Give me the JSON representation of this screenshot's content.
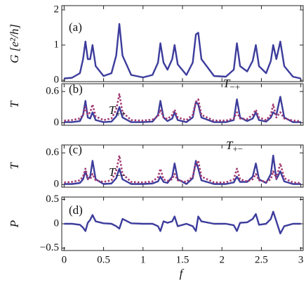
{
  "chart_data": {
    "type": "line",
    "xlabel": "f",
    "xlim": [
      -0.03,
      3.03
    ],
    "xticks": [
      0,
      0.5,
      1,
      1.5,
      2,
      2.5,
      3
    ],
    "x": [
      0,
      0.1,
      0.2,
      0.24,
      0.27,
      0.3,
      0.33,
      0.36,
      0.4,
      0.5,
      0.6,
      0.66,
      0.7,
      0.74,
      0.85,
      1.0,
      1.12,
      1.19,
      1.22,
      1.26,
      1.31,
      1.37,
      1.4,
      1.44,
      1.55,
      1.63,
      1.67,
      1.7,
      1.74,
      1.9,
      2.05,
      2.15,
      2.19,
      2.23,
      2.32,
      2.39,
      2.43,
      2.47,
      2.56,
      2.62,
      2.65,
      2.69,
      2.74,
      2.79,
      2.9,
      3.0
    ],
    "panels": [
      {
        "label": "(a)",
        "ylabel": "G [e²/h]",
        "ylim": [
          -0.04,
          2.12
        ],
        "yticks": [
          0,
          1,
          2
        ],
        "series": [
          {
            "color": "#3c3c9c",
            "dashed": false,
            "values": [
              0.05,
              0.07,
              0.2,
              0.6,
              1.1,
              0.6,
              0.6,
              1.0,
              0.4,
              0.12,
              0.2,
              0.7,
              1.6,
              0.7,
              0.15,
              0.08,
              0.15,
              0.5,
              1.05,
              0.5,
              0.3,
              0.6,
              1.0,
              0.45,
              0.15,
              0.5,
              1.3,
              1.35,
              0.6,
              0.12,
              0.1,
              0.3,
              1.05,
              0.4,
              0.25,
              0.55,
              1.0,
              0.4,
              0.2,
              0.55,
              1.0,
              0.6,
              1.1,
              0.4,
              0.1,
              0.05
            ]
          }
        ],
        "annotations": []
      },
      {
        "label": "(b)",
        "ylabel": "T",
        "ylim": [
          -0.05,
          0.75
        ],
        "yticks": [
          0,
          0.6
        ],
        "series": [
          {
            "color": "#3c3c9c",
            "dashed": false,
            "values": [
              0.01,
              0.01,
              0.03,
              0.15,
              0.42,
              0.1,
              0.08,
              0.2,
              0.05,
              0.01,
              0.02,
              0.12,
              0.3,
              0.1,
              0.01,
              0.01,
              0.02,
              0.15,
              0.42,
              0.1,
              0.03,
              0.08,
              0.2,
              0.05,
              0.01,
              0.1,
              0.4,
              0.35,
              0.1,
              0.01,
              0.01,
              0.05,
              0.45,
              0.1,
              0.03,
              0.08,
              0.2,
              0.05,
              0.02,
              0.1,
              0.2,
              0.15,
              0.5,
              0.1,
              0.01,
              0.01
            ]
          },
          {
            "color": "#a33a72",
            "dashed": true,
            "values": [
              0.04,
              0.05,
              0.08,
              0.15,
              0.3,
              0.15,
              0.2,
              0.35,
              0.12,
              0.05,
              0.08,
              0.25,
              0.55,
              0.2,
              0.05,
              0.04,
              0.06,
              0.12,
              0.25,
              0.1,
              0.07,
              0.15,
              0.25,
              0.1,
              0.05,
              0.15,
              0.4,
              0.45,
              0.15,
              0.04,
              0.04,
              0.08,
              0.2,
              0.08,
              0.07,
              0.15,
              0.25,
              0.1,
              0.05,
              0.15,
              0.35,
              0.1,
              0.2,
              0.08,
              0.04,
              0.03
            ]
          }
        ],
        "annotations": [
          {
            "text": "T",
            "sub": "++"
          },
          {
            "text": "T",
            "sub": "−+"
          }
        ]
      },
      {
        "label": "(c)",
        "ylabel": "T",
        "ylim": [
          -0.05,
          0.75
        ],
        "yticks": [
          0,
          0.6
        ],
        "series": [
          {
            "color": "#3c3c9c",
            "dashed": false,
            "values": [
              0.01,
              0.01,
              0.03,
              0.1,
              0.25,
              0.1,
              0.15,
              0.45,
              0.1,
              0.01,
              0.02,
              0.12,
              0.3,
              0.1,
              0.01,
              0.01,
              0.02,
              0.06,
              0.15,
              0.05,
              0.03,
              0.15,
              0.4,
              0.1,
              0.01,
              0.12,
              0.45,
              0.3,
              0.08,
              0.01,
              0.01,
              0.04,
              0.15,
              0.05,
              0.05,
              0.15,
              0.4,
              0.1,
              0.03,
              0.2,
              0.55,
              0.1,
              0.25,
              0.06,
              0.01,
              0.01
            ]
          },
          {
            "color": "#a33a72",
            "dashed": true,
            "values": [
              0.04,
              0.05,
              0.08,
              0.15,
              0.3,
              0.12,
              0.1,
              0.2,
              0.08,
              0.05,
              0.08,
              0.25,
              0.55,
              0.2,
              0.05,
              0.04,
              0.06,
              0.14,
              0.3,
              0.1,
              0.07,
              0.1,
              0.2,
              0.08,
              0.05,
              0.15,
              0.4,
              0.45,
              0.15,
              0.04,
              0.04,
              0.1,
              0.3,
              0.1,
              0.06,
              0.1,
              0.2,
              0.08,
              0.05,
              0.1,
              0.25,
              0.12,
              0.4,
              0.12,
              0.04,
              0.03
            ]
          }
        ],
        "annotations": [
          {
            "text": "T",
            "sub": "−−"
          },
          {
            "text": "T",
            "sub": "+−"
          }
        ]
      },
      {
        "label": "(d)",
        "ylabel": "P",
        "ylim": [
          -0.55,
          0.55
        ],
        "yticks": [
          {
            "value": 0.5,
            "label": "0.5"
          },
          0,
          {
            "value": -0.5,
            "label": "−0.5"
          }
        ],
        "series": [
          {
            "color": "#3c3c9c",
            "dashed": false,
            "values": [
              0,
              0,
              -0.02,
              -0.08,
              -0.15,
              0.02,
              0.08,
              0.18,
              0.05,
              0.01,
              0,
              -0.05,
              -0.1,
              0.1,
              0.01,
              0,
              0,
              -0.05,
              -0.15,
              0.05,
              0.02,
              0.05,
              0.15,
              -0.05,
              0,
              -0.05,
              -0.15,
              0.15,
              0.05,
              0,
              0,
              -0.03,
              -0.15,
              0.02,
              0.03,
              0.1,
              0.2,
              -0.02,
              0,
              0.1,
              0.25,
              0.05,
              -0.2,
              -0.05,
              0,
              0
            ]
          }
        ],
        "annotations": []
      }
    ]
  }
}
